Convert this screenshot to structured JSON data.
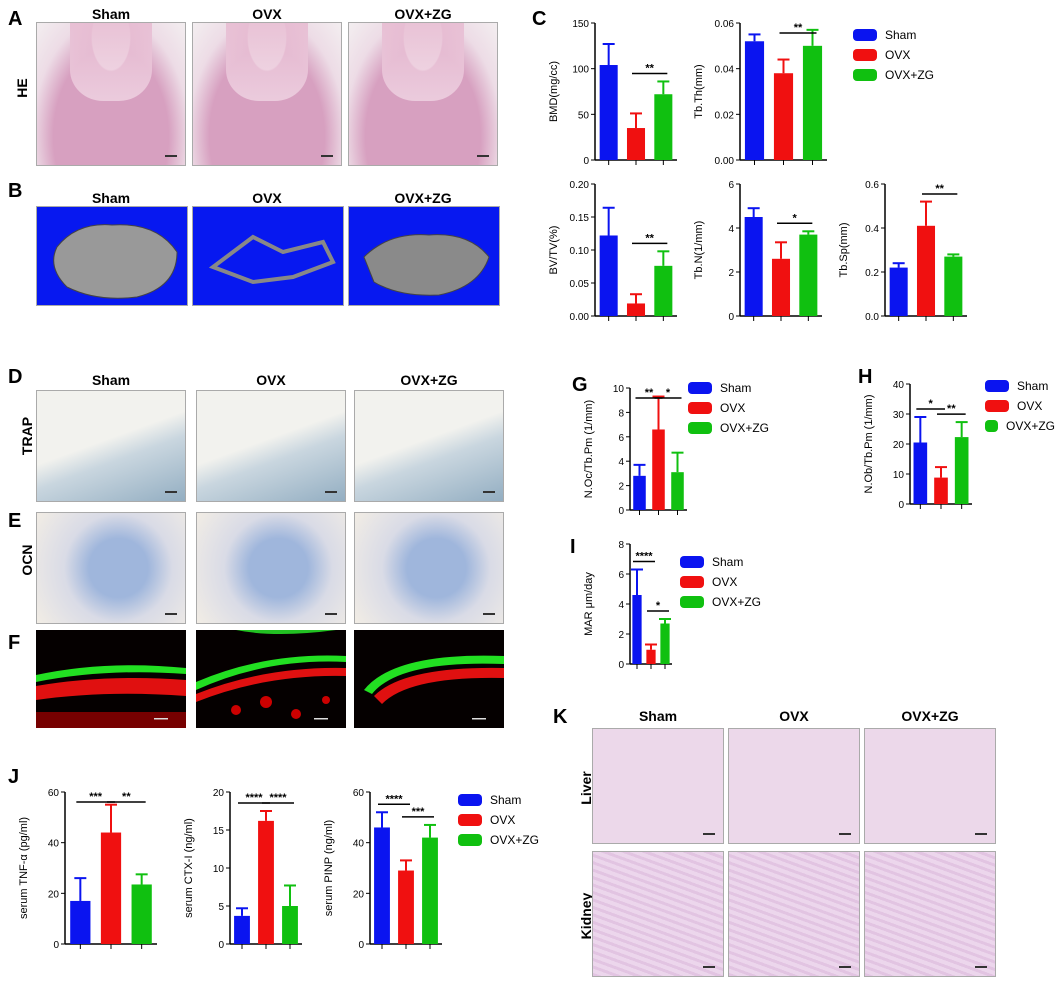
{
  "panels": {
    "A": "A",
    "B": "B",
    "C": "C",
    "D": "D",
    "E": "E",
    "F": "F",
    "G": "G",
    "H": "H",
    "I": "I",
    "J": "J",
    "K": "K"
  },
  "groups": [
    "Sham",
    "OVX",
    "OVX+ZG"
  ],
  "row_labels": {
    "he": "HE",
    "trap": "TRAP",
    "ocn": "OCN",
    "liver": "Liver",
    "kidney": "Kidney"
  },
  "colors": {
    "Sham": "#0a14f0",
    "OVX": "#f01010",
    "OVX+ZG": "#10c010"
  },
  "legend": [
    "Sham",
    "OVX",
    "OVX+ZG"
  ],
  "chart_data": [
    {
      "id": "C1",
      "type": "bar",
      "categories": [
        "Sham",
        "OVX",
        "OVX+ZG"
      ],
      "values": [
        104,
        35,
        72
      ],
      "errors": [
        23,
        16,
        14
      ],
      "ylabel": "BMD(mg/cc)",
      "ylim": [
        0,
        150
      ],
      "yticks": [
        "0",
        "50",
        "100",
        "150"
      ],
      "sig": [
        {
          "from": 1,
          "to": 2,
          "label": "**"
        }
      ]
    },
    {
      "id": "C2",
      "type": "bar",
      "categories": [
        "Sham",
        "OVX",
        "OVX+ZG"
      ],
      "values": [
        0.052,
        0.038,
        0.05
      ],
      "errors": [
        0.003,
        0.006,
        0.007
      ],
      "ylabel": "Tb.Th(mm)",
      "ylim": [
        0,
        0.06
      ],
      "yticks": [
        "0.00",
        "0.02",
        "0.04",
        "0.06"
      ],
      "sig": [
        {
          "from": 1,
          "to": 2,
          "label": "**"
        }
      ]
    },
    {
      "id": "C3",
      "type": "bar",
      "categories": [
        "Sham",
        "OVX",
        "OVX+ZG"
      ],
      "values": [
        0.122,
        0.019,
        0.076
      ],
      "errors": [
        0.042,
        0.014,
        0.022
      ],
      "ylabel": "BV/TV(%)",
      "ylim": [
        0,
        0.2
      ],
      "yticks": [
        "0.00",
        "0.05",
        "0.10",
        "0.15",
        "0.20"
      ],
      "sig": [
        {
          "from": 1,
          "to": 2,
          "label": "**"
        }
      ]
    },
    {
      "id": "C4",
      "type": "bar",
      "categories": [
        "Sham",
        "OVX",
        "OVX+ZG"
      ],
      "values": [
        4.5,
        2.6,
        3.7
      ],
      "errors": [
        0.4,
        0.75,
        0.15
      ],
      "ylabel": "Tb.N(1/mm)",
      "ylim": [
        0,
        6
      ],
      "yticks": [
        "0",
        "2",
        "4",
        "6"
      ],
      "sig": [
        {
          "from": 1,
          "to": 2,
          "label": "*"
        }
      ]
    },
    {
      "id": "C5",
      "type": "bar",
      "categories": [
        "Sham",
        "OVX",
        "OVX+ZG"
      ],
      "values": [
        0.22,
        0.41,
        0.27
      ],
      "errors": [
        0.02,
        0.11,
        0.01
      ],
      "ylabel": "Tb.Sp(mm)",
      "ylim": [
        0,
        0.6
      ],
      "yticks": [
        "0.0",
        "0.2",
        "0.4",
        "0.6"
      ],
      "sig": [
        {
          "from": 1,
          "to": 2,
          "label": "**"
        }
      ]
    },
    {
      "id": "G",
      "type": "bar",
      "categories": [
        "Sham",
        "OVX",
        "OVX+ZG"
      ],
      "values": [
        2.8,
        6.6,
        3.1
      ],
      "errors": [
        0.9,
        2.7,
        1.6
      ],
      "ylabel": "N.Oc/Tb.Pm  (1/mm)",
      "ylim": [
        0,
        10
      ],
      "yticks": [
        "0",
        "2",
        "4",
        "6",
        "8",
        "10"
      ],
      "sig": [
        {
          "from": 0,
          "to": 1,
          "label": "**"
        },
        {
          "from": 1,
          "to": 2,
          "label": "*"
        }
      ]
    },
    {
      "id": "H",
      "type": "bar",
      "categories": [
        "Sham",
        "OVX",
        "OVX+ZG"
      ],
      "values": [
        20.5,
        8.8,
        22.3
      ],
      "errors": [
        8.5,
        3.5,
        5
      ],
      "ylabel": "N.Ob/Tb.Pm  (1/mm)",
      "ylim": [
        0,
        40
      ],
      "yticks": [
        "0",
        "10",
        "20",
        "30",
        "40"
      ],
      "sig": [
        {
          "from": 0,
          "to": 1,
          "label": "*"
        },
        {
          "from": 1,
          "to": 2,
          "label": "**"
        }
      ]
    },
    {
      "id": "I",
      "type": "bar",
      "categories": [
        "Sham",
        "OVX",
        "OVX+ZG"
      ],
      "values": [
        4.6,
        0.95,
        2.7
      ],
      "errors": [
        1.7,
        0.35,
        0.3
      ],
      "ylabel": "MAR  μm/day",
      "ylim": [
        0,
        8
      ],
      "yticks": [
        "0",
        "2",
        "4",
        "6",
        "8"
      ],
      "sig": [
        {
          "from": 0,
          "to": 1,
          "label": "****"
        },
        {
          "from": 1,
          "to": 2,
          "label": "*"
        }
      ]
    },
    {
      "id": "J1",
      "type": "bar",
      "categories": [
        "Sham",
        "OVX",
        "OVX+ZG"
      ],
      "values": [
        17,
        44,
        23.5
      ],
      "errors": [
        9,
        11,
        4
      ],
      "ylabel": "serum TNF-α (pg/ml)",
      "ylim": [
        0,
        60
      ],
      "yticks": [
        "0",
        "20",
        "40",
        "60"
      ],
      "sig": [
        {
          "from": 0,
          "to": 1,
          "label": "***"
        },
        {
          "from": 1,
          "to": 2,
          "label": "**"
        }
      ]
    },
    {
      "id": "J2",
      "type": "bar",
      "categories": [
        "Sham",
        "OVX",
        "OVX+ZG"
      ],
      "values": [
        3.7,
        16.2,
        5
      ],
      "errors": [
        1,
        1.3,
        2.7
      ],
      "ylabel": "serum CTX-I    (ng/ml)",
      "ylim": [
        0,
        20
      ],
      "yticks": [
        "0",
        "5",
        "10",
        "15",
        "20"
      ],
      "sig": [
        {
          "from": 0,
          "to": 1,
          "label": "****"
        },
        {
          "from": 1,
          "to": 2,
          "label": "****"
        }
      ]
    },
    {
      "id": "J3",
      "type": "bar",
      "categories": [
        "Sham",
        "OVX",
        "OVX+ZG"
      ],
      "values": [
        46,
        29,
        42
      ],
      "errors": [
        6,
        4,
        5
      ],
      "ylabel": "serum PINP   (ng/ml)",
      "ylim": [
        0,
        60
      ],
      "yticks": [
        "0",
        "20",
        "40",
        "60"
      ],
      "sig": [
        {
          "from": 0,
          "to": 1,
          "label": "****"
        },
        {
          "from": 1,
          "to": 2,
          "label": "***"
        }
      ]
    }
  ]
}
